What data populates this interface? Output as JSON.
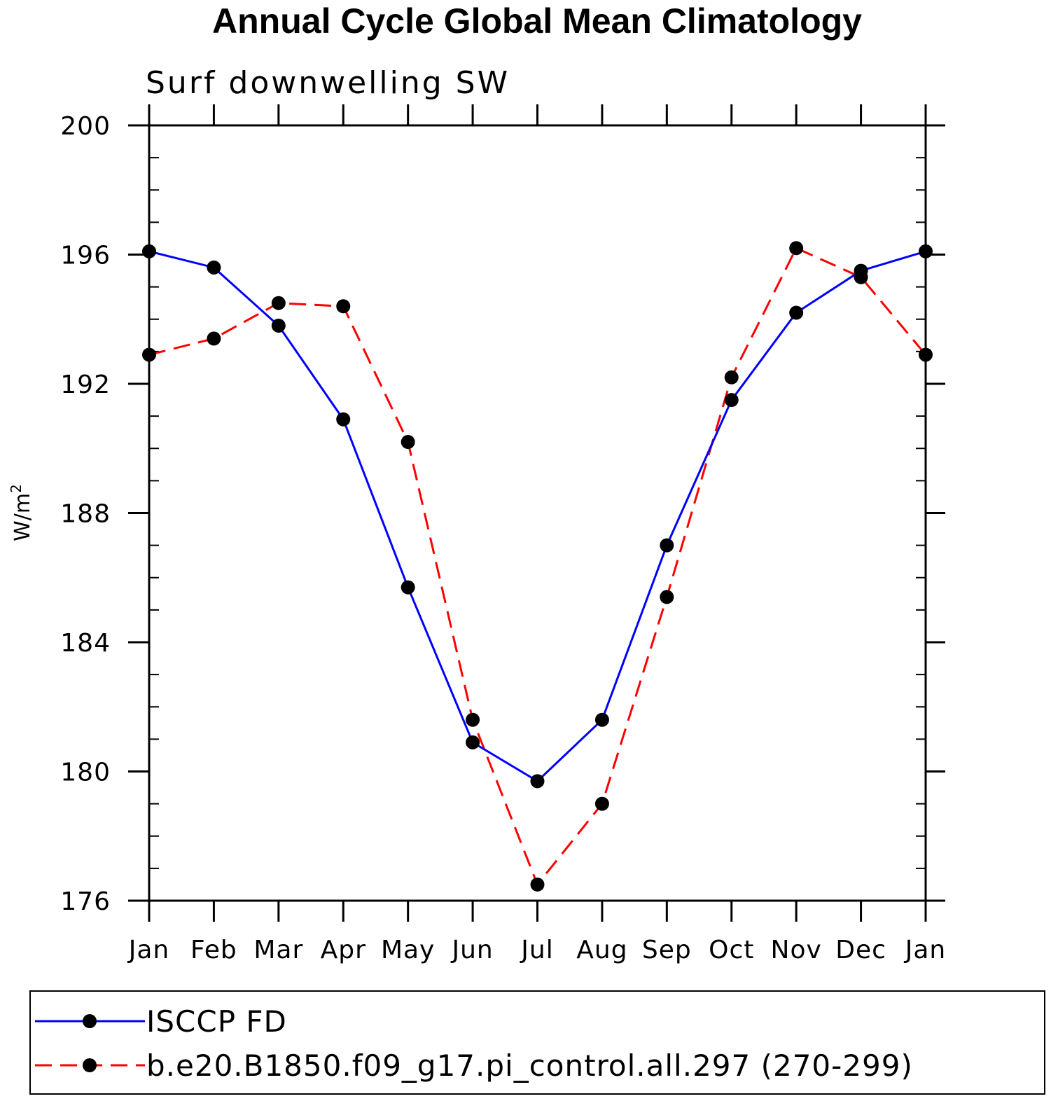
{
  "chart_data": {
    "type": "line",
    "title": "Annual Cycle Global Mean Climatology",
    "subtitle": "Surf downwelling SW",
    "xlabel": "",
    "ylabel": "W/m",
    "ylabel_sup": "2",
    "ylim": [
      176,
      200
    ],
    "yticks": [
      176,
      180,
      184,
      188,
      192,
      196,
      200
    ],
    "categories": [
      "Jan",
      "Feb",
      "Mar",
      "Apr",
      "May",
      "Jun",
      "Jul",
      "Aug",
      "Sep",
      "Oct",
      "Nov",
      "Dec",
      "Jan"
    ],
    "series": [
      {
        "name": "ISCCP FD",
        "color": "#0000ff",
        "dash": "solid",
        "values": [
          196.1,
          195.6,
          193.8,
          190.9,
          185.7,
          180.9,
          179.7,
          181.6,
          187.0,
          191.5,
          194.2,
          195.5,
          196.1
        ]
      },
      {
        "name": "b.e20.B1850.f09_g17.pi_control.all.297 (270-299)",
        "color": "#ff0000",
        "dash": "dashed",
        "values": [
          192.9,
          193.4,
          194.5,
          194.4,
          190.2,
          181.6,
          176.5,
          179.0,
          185.4,
          192.2,
          196.2,
          195.3,
          192.9
        ]
      }
    ],
    "legend_position": "bottom"
  }
}
